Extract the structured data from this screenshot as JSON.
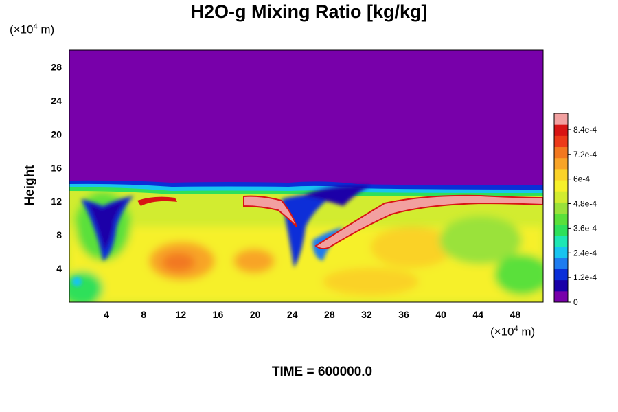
{
  "chart_data": {
    "type": "heatmap",
    "title": "H2O-g Mixing Ratio [kg/kg]",
    "ylabel": "Height",
    "xlabel": "",
    "x_unit": "(×10⁴ m)",
    "y_unit": "(×10⁴ m)",
    "footer": "TIME = 600000.0",
    "xlim": [
      0,
      51
    ],
    "ylim": [
      0,
      30
    ],
    "x_ticks": [
      "4",
      "8",
      "12",
      "16",
      "20",
      "24",
      "28",
      "32",
      "36",
      "40",
      "44",
      "48"
    ],
    "y_ticks": [
      "4",
      "8",
      "12",
      "16",
      "20",
      "24",
      "28"
    ],
    "colorbar": {
      "range": [
        0,
        0.00092
      ],
      "tick_labels": [
        "0",
        "1.2e-4",
        "2.4e-4",
        "3.6e-4",
        "4.8e-4",
        "6e-4",
        "7.2e-4",
        "8.4e-4"
      ],
      "colors": [
        "#7800aa",
        "#1a00a8",
        "#0a2fd8",
        "#1e7cf0",
        "#18c4f0",
        "#1ee6b4",
        "#2ee05a",
        "#5ae03a",
        "#9ae23a",
        "#d2ec30",
        "#f6f02a",
        "#fad228",
        "#f8a428",
        "#f27820",
        "#ec3a1a",
        "#d81414",
        "#f2a0a0"
      ]
    },
    "features": {
      "dry_upper_layer_top": 30,
      "moist_layer_top_approx": 13.5,
      "dry_intrusions_x": [
        6,
        25,
        27
      ],
      "max_value_band_height": 12
    }
  }
}
